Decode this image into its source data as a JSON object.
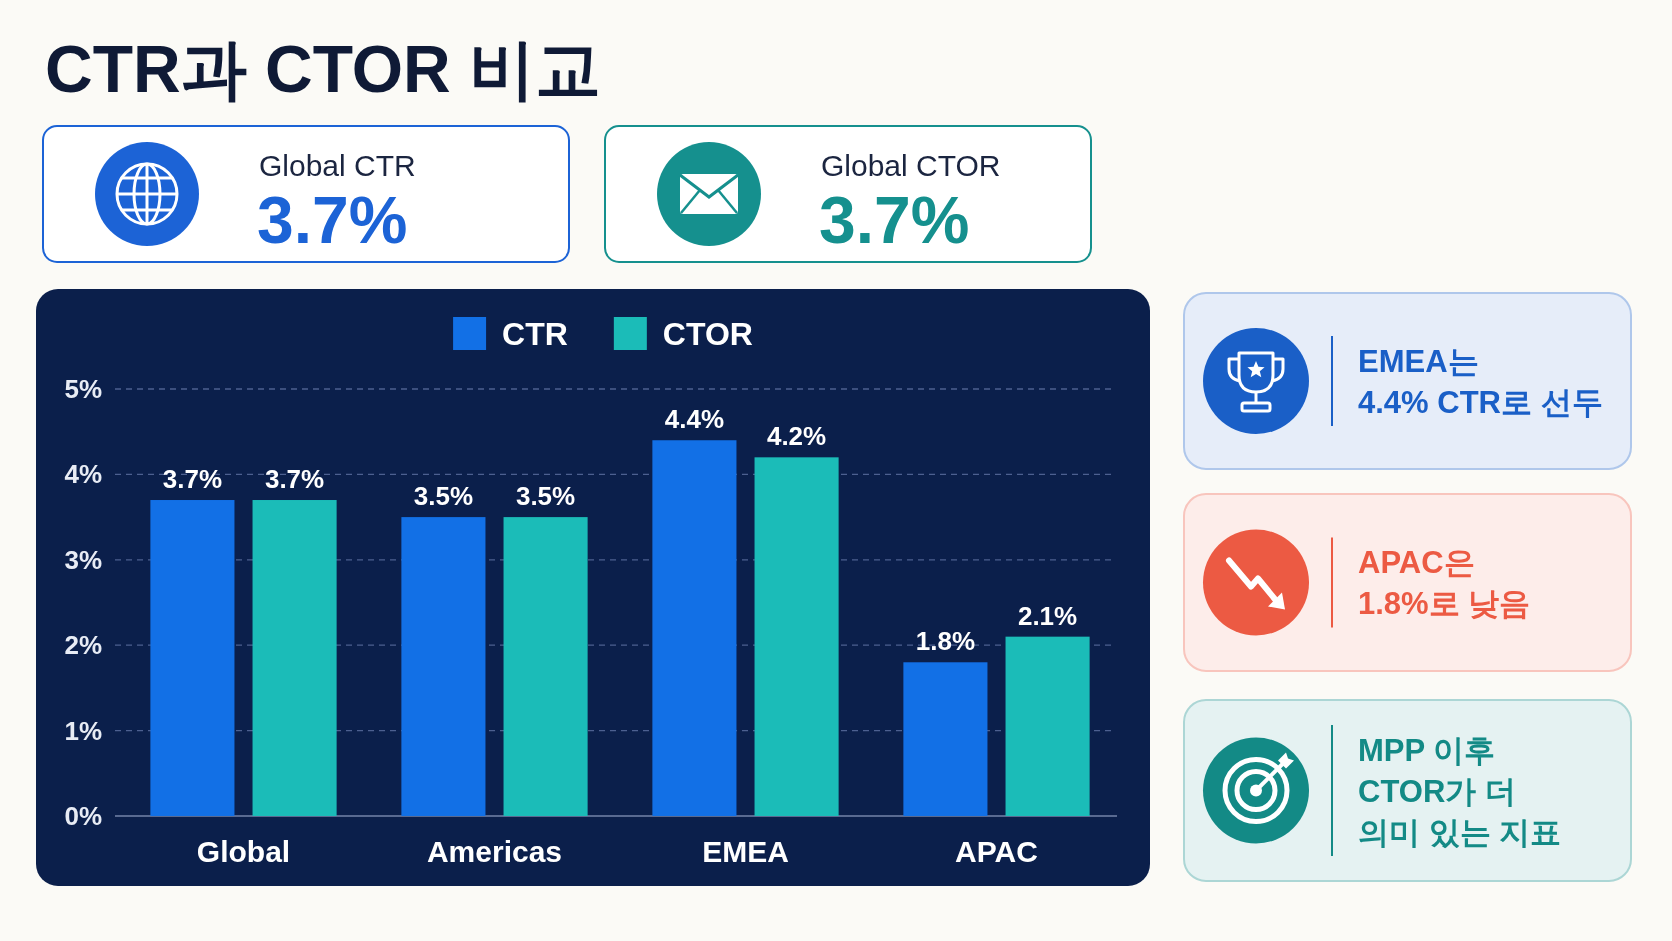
{
  "chart_data": [
    {
      "type": "other",
      "title": "CTR과 CTOR 비교",
      "categories": [
        "Global CTR",
        "Global CTOR"
      ],
      "value_labels": [
        "3.7%",
        "3.7%"
      ],
      "colors": [
        "#1c63d6",
        "#15908e"
      ]
    },
    {
      "type": "bar",
      "categories": [
        "Global",
        "Americas",
        "EMEA",
        "APAC"
      ],
      "series": [
        {
          "name": "CTR",
          "color": "#1270e6",
          "values": [
            3.7,
            3.5,
            4.4,
            1.8
          ],
          "value_labels": [
            "3.7%",
            "3.5%",
            "4.4%",
            "1.8%"
          ]
        },
        {
          "name": "CTOR",
          "color": "#1bbcb8",
          "values": [
            3.7,
            3.5,
            4.2,
            2.1
          ],
          "value_labels": [
            "3.7%",
            "3.5%",
            "4.2%",
            "2.1%"
          ]
        }
      ],
      "ylim": [
        0,
        5
      ],
      "yticks": [
        {
          "value": 0,
          "label": "0%"
        },
        {
          "value": 1,
          "label": "1%"
        },
        {
          "value": 2,
          "label": "2%"
        },
        {
          "value": 3,
          "label": "3%"
        },
        {
          "value": 4,
          "label": "4%"
        },
        {
          "value": 5,
          "label": "5%"
        }
      ],
      "grid": "y",
      "legend": "top"
    },
    {
      "type": "other",
      "annotations": [
        "EMEA는\n4.4% CTR로 선두",
        "APAC은\n1.8%로 낮음",
        "MPP 이후\nCTOR가 더\n의미 있는 지표"
      ],
      "colors": [
        "#1a5fc7",
        "#ec5a43",
        "#138a86"
      ]
    }
  ]
}
